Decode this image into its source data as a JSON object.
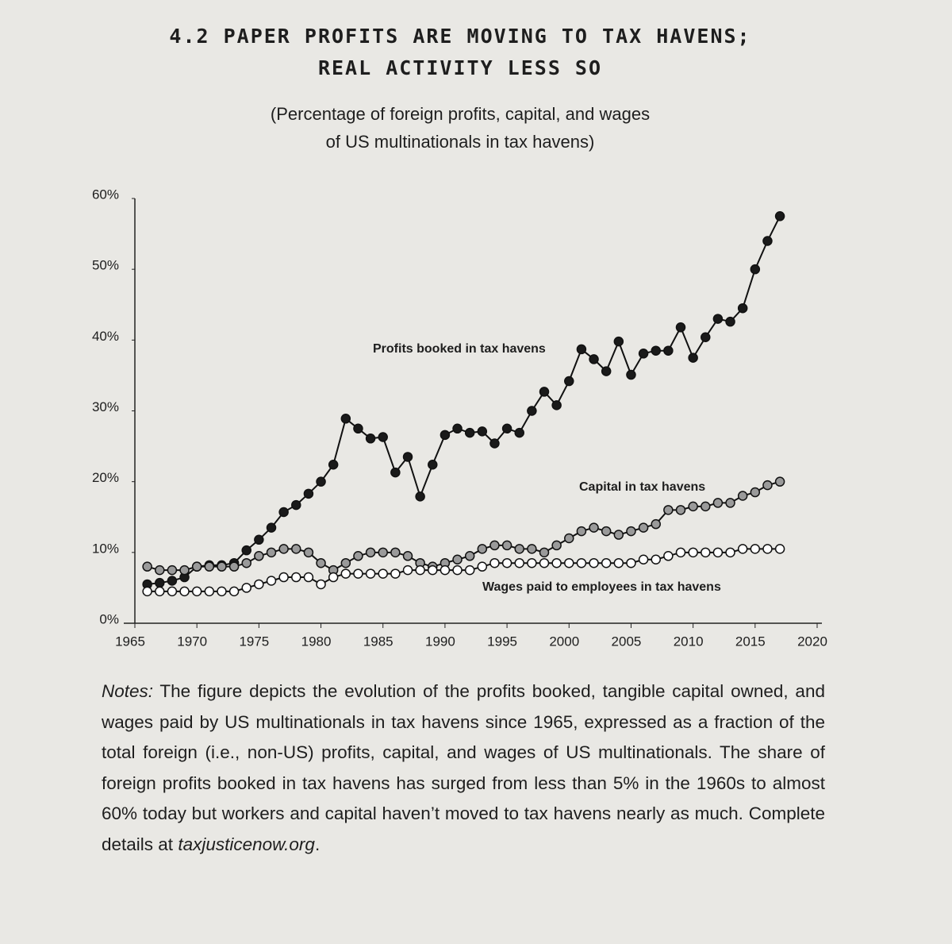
{
  "title": [
    "4.2 PAPER PROFITS ARE MOVING TO TAX HAVENS;",
    "REAL ACTIVITY LESS SO"
  ],
  "subtitle": [
    "(Percentage of foreign profits, capital, and wages",
    "of US multinationals in tax havens)"
  ],
  "chart_data": {
    "type": "line",
    "x": [
      1966,
      1967,
      1968,
      1969,
      1970,
      1971,
      1972,
      1973,
      1974,
      1975,
      1976,
      1977,
      1978,
      1979,
      1980,
      1981,
      1982,
      1983,
      1984,
      1985,
      1986,
      1987,
      1988,
      1989,
      1990,
      1991,
      1992,
      1993,
      1994,
      1995,
      1996,
      1997,
      1998,
      1999,
      2000,
      2001,
      2002,
      2003,
      2004,
      2005,
      2006,
      2007,
      2008,
      2009,
      2010,
      2011,
      2012,
      2013,
      2014,
      2015,
      2016,
      2017
    ],
    "series": [
      {
        "name": "Profits booked in tax havens",
        "color": "#1a1a1a",
        "values": [
          5.5,
          5.7,
          6,
          6.5,
          8,
          8.2,
          8.2,
          8.5,
          10.3,
          11.8,
          13.5,
          15.7,
          16.7,
          18.3,
          20,
          22.4,
          28.9,
          27.5,
          26.1,
          26.3,
          21.3,
          23.5,
          17.9,
          22.4,
          26.6,
          27.5,
          26.9,
          27.1,
          25.4,
          27.5,
          26.9,
          30,
          32.7,
          30.8,
          34.2,
          38.7,
          37.3,
          35.6,
          39.8,
          35.1,
          38.1,
          38.5,
          38.5,
          41.8,
          37.5,
          40.4,
          43,
          42.6,
          44.5,
          50,
          54,
          57.5
        ]
      },
      {
        "name": "Capital in tax havens",
        "color": "#9a9a9a",
        "values": [
          8,
          7.5,
          7.5,
          7.5,
          8,
          8,
          8,
          8,
          8.5,
          9.5,
          10,
          10.5,
          10.5,
          10,
          8.5,
          7.5,
          8.5,
          9.5,
          10,
          10,
          10,
          9.5,
          8.5,
          8,
          8.5,
          9,
          9.5,
          10.5,
          11,
          11,
          10.5,
          10.5,
          10,
          11,
          12,
          13,
          13.5,
          13,
          12.5,
          13,
          13.5,
          14,
          16,
          16,
          16.5,
          16.5,
          17,
          17,
          18,
          18.5,
          19.5,
          20
        ]
      },
      {
        "name": "Wages paid to employees in tax havens",
        "color": "#ffffff",
        "values": [
          4.5,
          4.5,
          4.5,
          4.5,
          4.5,
          4.5,
          4.5,
          4.5,
          5,
          5.5,
          6,
          6.5,
          6.5,
          6.5,
          5.5,
          6.5,
          7,
          7,
          7,
          7,
          7,
          7.5,
          7.5,
          7.5,
          7.5,
          7.5,
          7.5,
          8,
          8.5,
          8.5,
          8.5,
          8.5,
          8.5,
          8.5,
          8.5,
          8.5,
          8.5,
          8.5,
          8.5,
          8.5,
          9,
          9,
          9.5,
          10,
          10,
          10,
          10,
          10,
          10.5,
          10.5,
          10.5,
          10.5
        ]
      }
    ],
    "xlim": [
      1965,
      2020
    ],
    "xticks": [
      1965,
      1970,
      1975,
      1980,
      1985,
      1990,
      1995,
      2000,
      2005,
      2010,
      2015,
      2020
    ],
    "ylim": [
      0,
      60
    ],
    "yticks": [
      {
        "value": 0,
        "label": "0%"
      },
      {
        "value": 10,
        "label": "10%"
      },
      {
        "value": 20,
        "label": "20%"
      },
      {
        "value": 30,
        "label": "30%"
      },
      {
        "value": 40,
        "label": "40%"
      },
      {
        "value": 50,
        "label": "50%"
      },
      {
        "value": 60,
        "label": "60%"
      }
    ],
    "grid": false
  },
  "notes": {
    "label": "Notes:",
    "text": "The figure depicts the evolution of the profits booked, tangible capital owned, and wages paid by US multinationals in tax havens since 1965, expressed as a fraction of the total foreign (i.e., non-US) profits, capital, and wages of US multinationals. The share of foreign profits booked in tax havens has surged from less than 5% in the 1960s to almost 60% today but workers and capital haven’t moved to tax havens nearly as much. Complete details at",
    "link": "taxjusticenow.org",
    "end": "."
  }
}
